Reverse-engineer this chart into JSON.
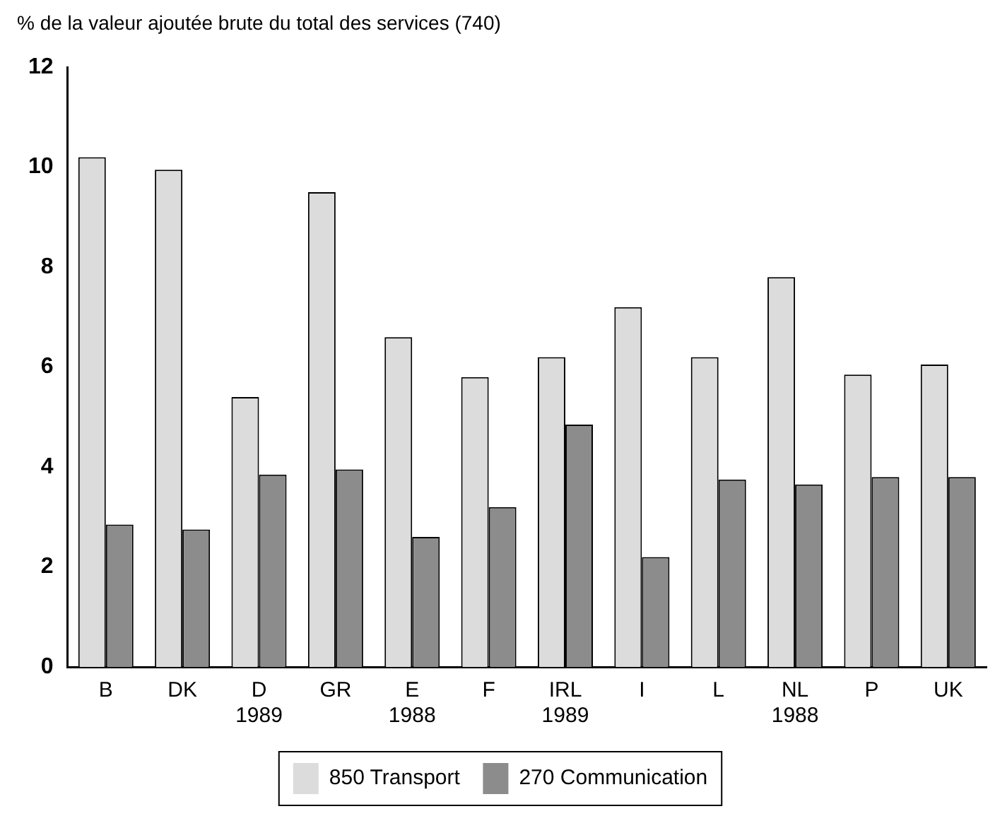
{
  "chart_data": {
    "type": "bar",
    "ylabel": "% de la valeur ajoutée brute du total des services (740)",
    "categories": [
      "B",
      "DK",
      "D\n1989",
      "GR",
      "E\n1988",
      "F",
      "IRL\n1989",
      "I",
      "L",
      "NL\n1988",
      "P",
      "UK"
    ],
    "series": [
      {
        "name": "850 Transport",
        "color": "#dcdcdc",
        "values": [
          10.2,
          9.95,
          5.4,
          9.5,
          6.6,
          5.8,
          6.2,
          7.2,
          6.2,
          7.8,
          5.85,
          6.05
        ]
      },
      {
        "name": "270 Communication",
        "color": "#8c8c8c",
        "values": [
          2.85,
          2.75,
          3.85,
          3.95,
          2.6,
          3.2,
          4.85,
          2.2,
          3.75,
          3.65,
          3.8,
          3.8
        ]
      }
    ],
    "ylim": [
      0,
      12
    ],
    "yticks": [
      0,
      2,
      4,
      6,
      8,
      10,
      12
    ],
    "grid": false,
    "legend": "bottom"
  }
}
